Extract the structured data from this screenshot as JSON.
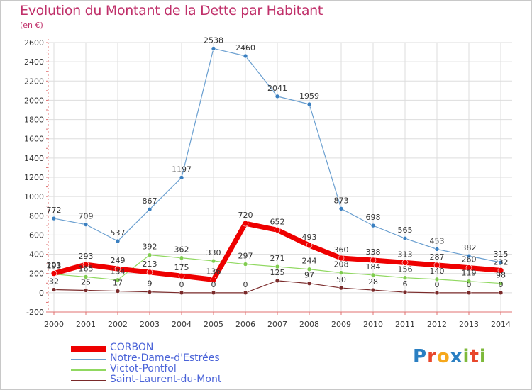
{
  "header": {
    "title": "Evolution du Montant de la Dette par Habitant",
    "unit": "(en €)"
  },
  "logo": {
    "text": "Proxiti",
    "colors": [
      "#2a7fc2",
      "#e8472c",
      "#f6a81c",
      "#2a7fc2",
      "#7db93a",
      "#e8472c",
      "#7db93a"
    ]
  },
  "chart_data": {
    "type": "line",
    "title": "Evolution du Montant de la Dette par Habitant",
    "ylabel": "(en €)",
    "xlabel": "",
    "x": [
      2000,
      2001,
      2002,
      2003,
      2004,
      2005,
      2006,
      2007,
      2008,
      2009,
      2010,
      2011,
      2012,
      2013,
      2014
    ],
    "ylim": [
      -200,
      2600
    ],
    "yticks": [
      -200,
      0,
      200,
      400,
      600,
      800,
      1000,
      1200,
      1400,
      1600,
      1800,
      2000,
      2200,
      2400,
      2600
    ],
    "grid": true,
    "legend_position": "bottom-left",
    "series": [
      {
        "name": "Notre-Dame-d'Estrées",
        "color": "#6a9fd0",
        "values": [
          772,
          709,
          537,
          867,
          1197,
          2538,
          2460,
          2041,
          1959,
          873,
          698,
          565,
          453,
          382,
          315
        ]
      },
      {
        "name": "Victot-Pontfol",
        "color": "#90d860",
        "values": [
          193,
          165,
          134,
          392,
          362,
          330,
          297,
          271,
          244,
          208,
          184,
          156,
          140,
          119,
          98
        ]
      },
      {
        "name": "Saint-Laurent-du-Mont",
        "color": "#7a2a2a",
        "values": [
          32,
          25,
          17,
          9,
          0,
          0,
          0,
          125,
          97,
          50,
          28,
          6,
          0,
          0,
          0
        ]
      },
      {
        "name": "CORBON",
        "color": "#ee0000",
        "values": [
          201,
          293,
          249,
          213,
          175,
          136,
          720,
          652,
          493,
          360,
          338,
          313,
          287,
          260,
          232
        ]
      }
    ]
  }
}
